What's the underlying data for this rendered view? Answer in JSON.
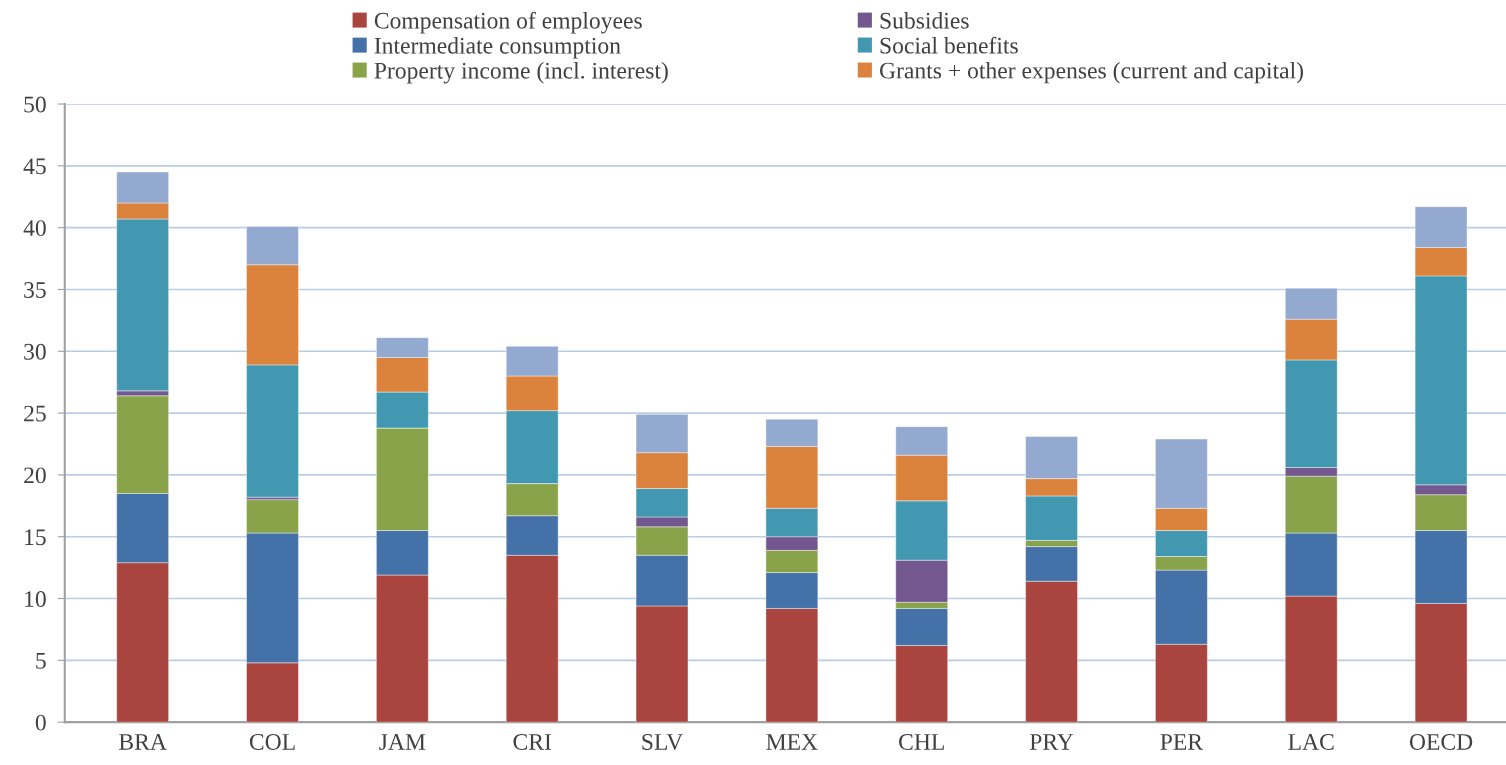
{
  "chart_data": {
    "type": "bar",
    "stacked": true,
    "categories": [
      "BRA",
      "COL",
      "JAM",
      "CRI",
      "SLV",
      "MEX",
      "CHL",
      "PRY",
      "PER",
      "LAC",
      "OECD"
    ],
    "series": [
      {
        "name": "Compensation of employees",
        "color": "#a9443f",
        "values": [
          12.9,
          4.8,
          11.9,
          13.5,
          9.4,
          9.2,
          6.2,
          11.4,
          6.3,
          10.2,
          9.6
        ]
      },
      {
        "name": "Intermediate consumption",
        "color": "#4471a7",
        "values": [
          5.6,
          10.5,
          3.6,
          3.2,
          4.1,
          2.9,
          3.0,
          2.8,
          6.0,
          5.1,
          5.9
        ]
      },
      {
        "name": "Property income (incl. interest)",
        "color": "#89a34b",
        "values": [
          7.9,
          2.7,
          8.3,
          2.6,
          2.3,
          1.8,
          0.5,
          0.5,
          1.1,
          4.6,
          2.9
        ]
      },
      {
        "name": "Subsidies",
        "color": "#72588e",
        "values": [
          0.4,
          0.2,
          0,
          0,
          0.8,
          1.1,
          3.4,
          0,
          0,
          0.7,
          0.8
        ]
      },
      {
        "name": "Social benefits",
        "color": "#4298b0",
        "values": [
          13.9,
          10.7,
          2.9,
          5.9,
          2.3,
          2.3,
          4.8,
          3.6,
          2.1,
          8.7,
          16.9
        ]
      },
      {
        "name": "Grants + other expenses (current and capital)",
        "color": "#db823c",
        "values": [
          1.3,
          8.1,
          2.8,
          2.8,
          2.9,
          5.0,
          3.7,
          1.4,
          1.8,
          3.3,
          2.3
        ]
      },
      {
        "color": "#94a9d0",
        "values": [
          2.5,
          3.1,
          1.6,
          2.4,
          3.1,
          2.2,
          2.3,
          3.4,
          5.6,
          2.5,
          3.3
        ]
      }
    ],
    "ylim": [
      0,
      50
    ],
    "yticks": [
      0,
      5,
      10,
      15,
      20,
      25,
      30,
      35,
      40,
      45,
      50
    ],
    "grid": "y",
    "legend": "top"
  }
}
